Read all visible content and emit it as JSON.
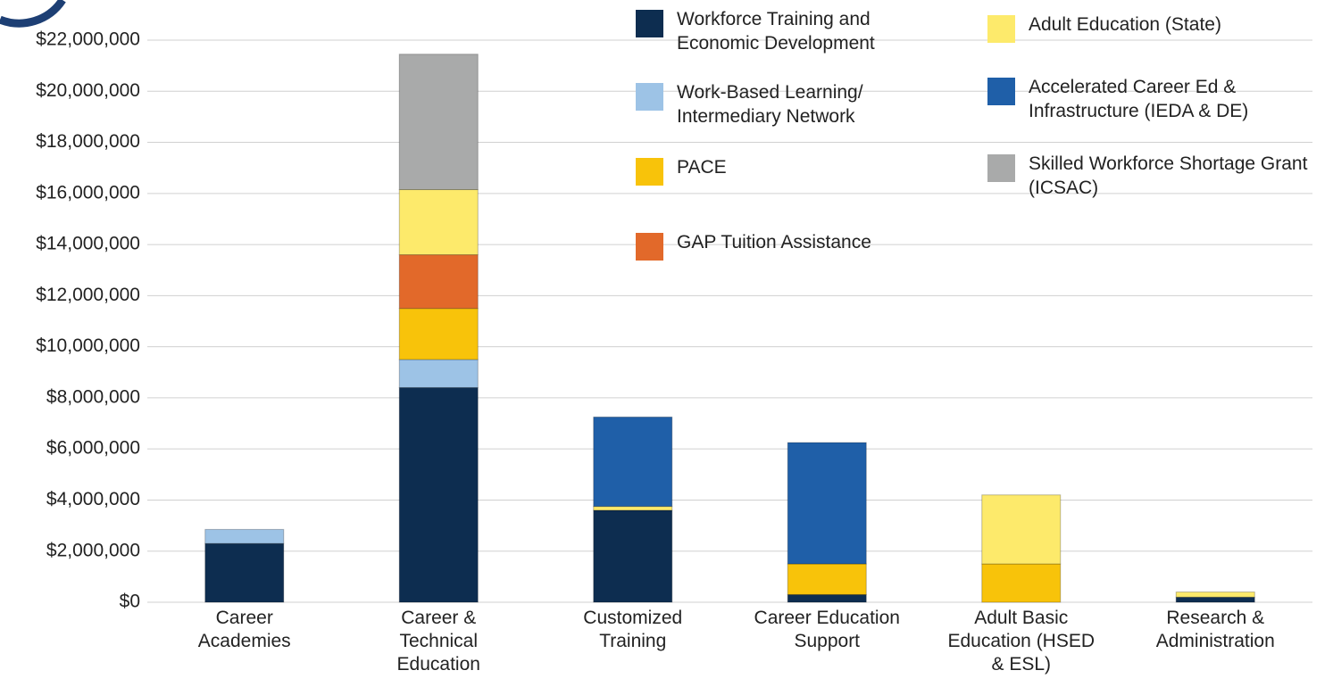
{
  "chart_data": {
    "type": "stacked-bar",
    "categories": [
      "Career Academies",
      "Career & Technical Education",
      "Customized Training",
      "Career Education Support",
      "Adult Basic Education (HSED & ESL)",
      "Research & Administration"
    ],
    "series": [
      {
        "name": "Workforce Training and Economic Development",
        "color": "#0d2d50",
        "values": [
          2300000,
          8400000,
          3600000,
          300000,
          0,
          200000
        ]
      },
      {
        "name": "Work-Based Learning/ Intermediary Network",
        "color": "#9dc3e6",
        "values": [
          550000,
          1100000,
          0,
          0,
          0,
          0
        ]
      },
      {
        "name": "PACE",
        "color": "#f8c30a",
        "values": [
          0,
          2000000,
          0,
          1200000,
          1500000,
          0
        ]
      },
      {
        "name": "GAP Tuition Assistance",
        "color": "#e2692a",
        "values": [
          0,
          2100000,
          0,
          0,
          0,
          0
        ]
      },
      {
        "name": "Adult Education (State)",
        "color": "#fdea6b",
        "values": [
          0,
          2550000,
          150000,
          0,
          2700000,
          200000
        ]
      },
      {
        "name": "Accelerated Career Ed & Infrastructure (IEDA & DE)",
        "color": "#1f5fa8",
        "values": [
          0,
          0,
          3500000,
          4750000,
          0,
          0
        ]
      },
      {
        "name": "Skilled Workforce Shortage Grant (ICSAC)",
        "color": "#a9aaaa",
        "values": [
          0,
          5300000,
          0,
          0,
          0,
          0
        ]
      }
    ],
    "ylim": [
      0,
      22000000
    ],
    "yticks": [
      {
        "value": 0,
        "label": "$0"
      },
      {
        "value": 2000000,
        "label": "$2,000,000"
      },
      {
        "value": 4000000,
        "label": "$4,000,000"
      },
      {
        "value": 6000000,
        "label": "$6,000,000"
      },
      {
        "value": 8000000,
        "label": "$8,000,000"
      },
      {
        "value": 10000000,
        "label": "$10,000,000"
      },
      {
        "value": 12000000,
        "label": "$12,000,000"
      },
      {
        "value": 14000000,
        "label": "$14,000,000"
      },
      {
        "value": 16000000,
        "label": "$16,000,000"
      },
      {
        "value": 18000000,
        "label": "$18,000,000"
      },
      {
        "value": 20000000,
        "label": "$20,000,000"
      },
      {
        "value": 22000000,
        "label": "$22,000,000"
      }
    ],
    "grid": true
  }
}
